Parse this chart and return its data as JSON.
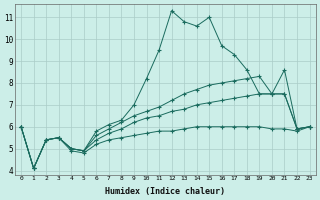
{
  "xlabel": "Humidex (Indice chaleur)",
  "ylabel": "",
  "background_color": "#cceee8",
  "line_color": "#1a6b5e",
  "grid_color": "#aaccc8",
  "xlim": [
    -0.5,
    23.5
  ],
  "ylim": [
    3.8,
    11.6
  ],
  "yticks": [
    4,
    5,
    6,
    7,
    8,
    9,
    10,
    11
  ],
  "xticks": [
    0,
    1,
    2,
    3,
    4,
    5,
    6,
    7,
    8,
    9,
    10,
    11,
    12,
    13,
    14,
    15,
    16,
    17,
    18,
    19,
    20,
    21,
    22,
    23
  ],
  "series": [
    {
      "x": [
        0,
        1,
        2,
        3,
        4,
        5,
        6,
        7,
        8,
        9,
        10,
        11,
        12,
        13,
        14,
        15,
        16,
        17,
        18,
        19,
        20,
        21,
        22,
        23
      ],
      "y": [
        6.0,
        4.1,
        5.4,
        5.5,
        5.0,
        4.9,
        5.8,
        6.1,
        6.3,
        7.0,
        8.2,
        9.5,
        11.3,
        10.8,
        10.6,
        11.0,
        9.7,
        9.3,
        8.6,
        7.5,
        7.5,
        8.6,
        5.9,
        6.0
      ]
    },
    {
      "x": [
        0,
        1,
        2,
        3,
        4,
        5,
        6,
        7,
        8,
        9,
        10,
        11,
        12,
        13,
        14,
        15,
        16,
        17,
        18,
        19,
        20,
        21,
        22,
        23
      ],
      "y": [
        6.0,
        4.1,
        5.4,
        5.5,
        5.0,
        4.9,
        5.6,
        5.9,
        6.2,
        6.5,
        6.7,
        6.9,
        7.2,
        7.5,
        7.7,
        7.9,
        8.0,
        8.1,
        8.2,
        8.3,
        7.5,
        7.5,
        5.9,
        6.0
      ]
    },
    {
      "x": [
        0,
        1,
        2,
        3,
        4,
        5,
        6,
        7,
        8,
        9,
        10,
        11,
        12,
        13,
        14,
        15,
        16,
        17,
        18,
        19,
        20,
        21,
        22,
        23
      ],
      "y": [
        6.0,
        4.1,
        5.4,
        5.5,
        5.0,
        4.9,
        5.4,
        5.7,
        5.9,
        6.2,
        6.4,
        6.5,
        6.7,
        6.8,
        7.0,
        7.1,
        7.2,
        7.3,
        7.4,
        7.5,
        7.5,
        7.5,
        5.9,
        6.0
      ]
    },
    {
      "x": [
        0,
        1,
        2,
        3,
        4,
        5,
        6,
        7,
        8,
        9,
        10,
        11,
        12,
        13,
        14,
        15,
        16,
        17,
        18,
        19,
        20,
        21,
        22,
        23
      ],
      "y": [
        6.0,
        4.1,
        5.4,
        5.5,
        4.9,
        4.8,
        5.2,
        5.4,
        5.5,
        5.6,
        5.7,
        5.8,
        5.8,
        5.9,
        6.0,
        6.0,
        6.0,
        6.0,
        6.0,
        6.0,
        5.9,
        5.9,
        5.8,
        6.0
      ]
    }
  ]
}
